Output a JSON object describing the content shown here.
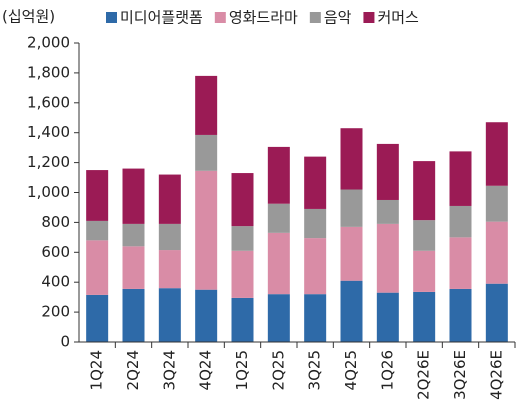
{
  "chart_data": {
    "type": "stacked_bar",
    "y_label": "(십억원)",
    "categories": [
      "1Q24",
      "2Q24",
      "3Q24",
      "4Q24",
      "1Q25",
      "2Q25",
      "3Q25",
      "4Q25",
      "1Q26",
      "2Q26E",
      "3Q26E",
      "4Q26E"
    ],
    "series": [
      {
        "name": "미디어플랫폼",
        "color": "#2e6aa8",
        "values": [
          315,
          355,
          360,
          350,
          295,
          320,
          320,
          410,
          330,
          335,
          355,
          390
        ]
      },
      {
        "name": "영화드라마",
        "color": "#d98ca6",
        "values": [
          365,
          285,
          255,
          795,
          315,
          410,
          375,
          360,
          460,
          275,
          345,
          415
        ]
      },
      {
        "name": "음악",
        "color": "#999999",
        "values": [
          130,
          150,
          175,
          240,
          165,
          195,
          195,
          250,
          160,
          205,
          210,
          240
        ]
      },
      {
        "name": "커머스",
        "color": "#9b1b55",
        "values": [
          340,
          370,
          330,
          395,
          355,
          380,
          350,
          410,
          375,
          395,
          365,
          425
        ]
      }
    ],
    "ylim": [
      0,
      2000
    ],
    "yticks": [
      0,
      200,
      400,
      600,
      800,
      {
        "value": 1000,
        "label": "1,000"
      },
      {
        "value": 1200,
        "label": "1,200"
      },
      {
        "value": 1400,
        "label": "1,400"
      },
      {
        "value": 1600,
        "label": "1,600"
      },
      {
        "value": 1800,
        "label": "1,800"
      },
      {
        "value": 2000,
        "label": "2,000"
      }
    ]
  }
}
